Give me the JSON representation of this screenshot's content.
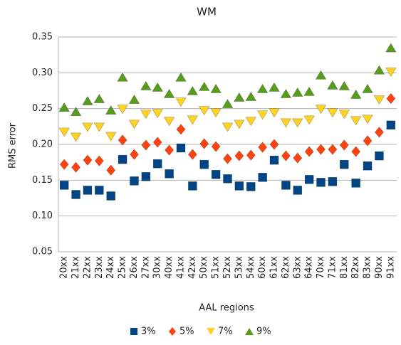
{
  "chart_data": {
    "type": "scatter",
    "title": "WM",
    "y_label": "RMS error",
    "x_label": "AAL regions",
    "categories": [
      "20xx",
      "21xx",
      "22xx",
      "23xx",
      "24xx",
      "25xx",
      "26xx",
      "27xx",
      "30xx",
      "40xx",
      "41xx",
      "42xx",
      "50xx",
      "51xx",
      "52xx",
      "53xx",
      "54xx",
      "60xx",
      "61xx",
      "62xx",
      "63xx",
      "64xx",
      "70xx",
      "71xx",
      "81xx",
      "82xx",
      "83xx",
      "90xx",
      "91xx"
    ],
    "series": [
      {
        "name": "3%",
        "color": "#004586",
        "marker": "square",
        "values": [
          0.143,
          0.13,
          0.136,
          0.136,
          0.128,
          0.179,
          0.149,
          0.155,
          0.173,
          0.159,
          0.195,
          0.142,
          0.172,
          0.158,
          0.152,
          0.142,
          0.141,
          0.154,
          0.178,
          0.143,
          0.136,
          0.151,
          0.147,
          0.148,
          0.172,
          0.146,
          0.17,
          0.184,
          0.227
        ]
      },
      {
        "name": "5%",
        "color": "#ff420e",
        "marker": "diamond",
        "values": [
          0.172,
          0.168,
          0.178,
          0.177,
          0.164,
          0.206,
          0.186,
          0.199,
          0.203,
          0.192,
          0.221,
          0.186,
          0.201,
          0.197,
          0.18,
          0.184,
          0.185,
          0.196,
          0.2,
          0.184,
          0.181,
          0.19,
          0.193,
          0.193,
          0.199,
          0.19,
          0.205,
          0.217,
          0.264
        ]
      },
      {
        "name": "7%",
        "color": "#ffd320",
        "marker": "triangle-down",
        "values": [
          0.217,
          0.21,
          0.224,
          0.224,
          0.211,
          0.249,
          0.228,
          0.242,
          0.243,
          0.232,
          0.259,
          0.234,
          0.247,
          0.244,
          0.224,
          0.228,
          0.232,
          0.241,
          0.244,
          0.23,
          0.23,
          0.234,
          0.249,
          0.244,
          0.242,
          0.233,
          0.235,
          0.262,
          0.301
        ]
      },
      {
        "name": "9%",
        "color": "#579d1c",
        "marker": "triangle-up",
        "values": [
          0.252,
          0.246,
          0.261,
          0.264,
          0.248,
          0.294,
          0.263,
          0.282,
          0.28,
          0.271,
          0.294,
          0.275,
          0.281,
          0.278,
          0.257,
          0.266,
          0.267,
          0.278,
          0.28,
          0.271,
          0.273,
          0.274,
          0.297,
          0.283,
          0.282,
          0.27,
          0.278,
          0.304,
          0.335
        ]
      }
    ],
    "ylim": [
      0.05,
      0.35
    ],
    "yticks": [
      0.05,
      {
        "value": 0.1,
        "label": "0.10"
      },
      0.15,
      {
        "value": 0.2,
        "label": "0.20"
      },
      0.25,
      {
        "value": 0.3,
        "label": "0.30"
      },
      0.35
    ],
    "grid": true,
    "legend": "bottom"
  }
}
